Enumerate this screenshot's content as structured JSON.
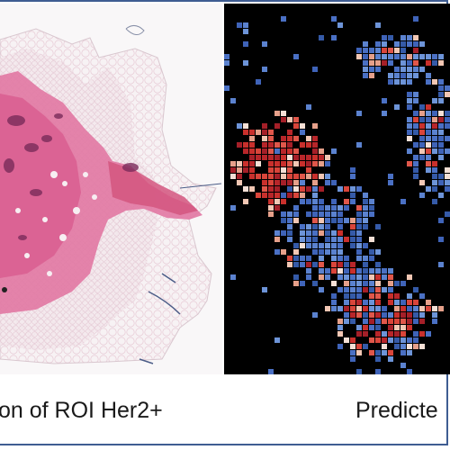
{
  "panels": {
    "left": {
      "caption": "on of ROI Her2+"
    },
    "right": {
      "caption": "Predicte"
    }
  },
  "colors": {
    "border": "#3f5d92",
    "tissue_pink": "#e27aa4",
    "tissue_deep": "#c0406e",
    "heatmap_low": "#4a6fc0",
    "heatmap_high": "#c9302c",
    "heatmap_bg": "#000000"
  }
}
